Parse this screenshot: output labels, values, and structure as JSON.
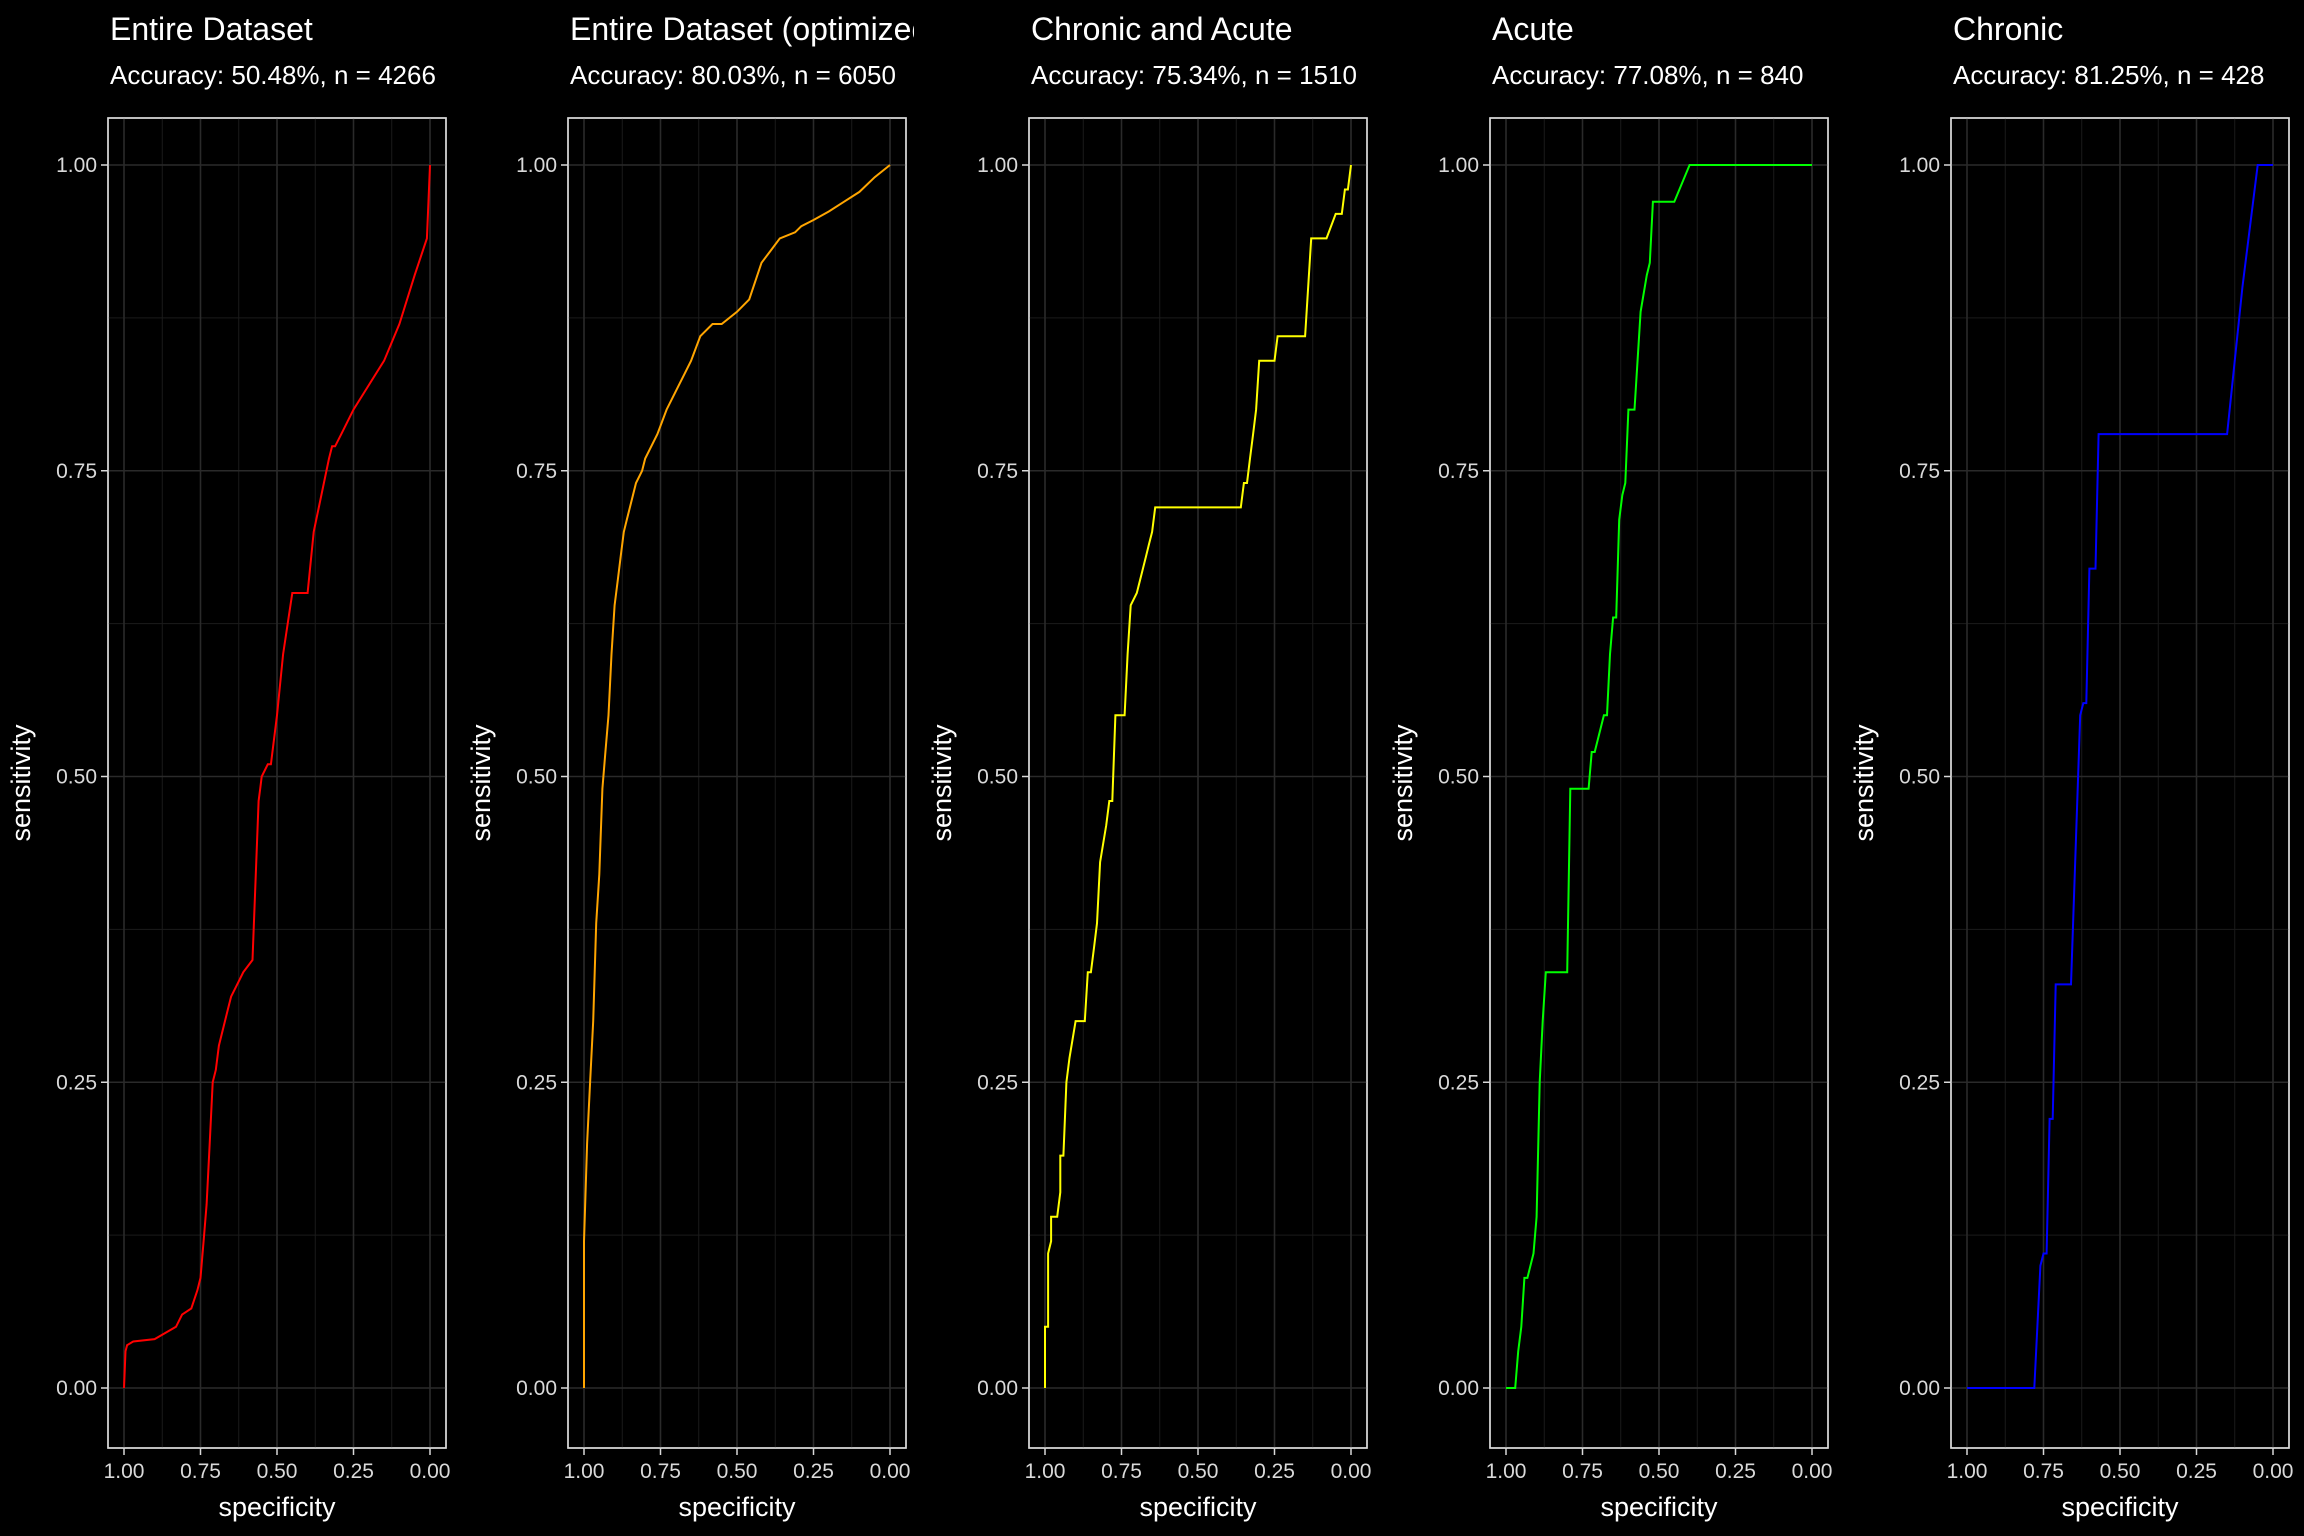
{
  "chart_data": [
    {
      "type": "line",
      "title": "Entire Dataset",
      "subtitle": "Accuracy: 50.48%, n = 4266",
      "xlabel": "specificity",
      "ylabel": "sensitivity",
      "x_reversed": true,
      "xlim": [
        1.0,
        0.0
      ],
      "ylim": [
        0.0,
        1.0
      ],
      "xticks": [
        "1.00",
        "0.75",
        "0.50",
        "0.25",
        "0.00"
      ],
      "yticks": [
        "0.00",
        "0.25",
        "0.50",
        "0.75",
        "1.00"
      ],
      "grid": true,
      "color": "#ff0000",
      "series": [
        {
          "x": [
            1.0,
            0.995,
            0.99,
            0.97,
            0.9,
            0.83,
            0.81,
            0.78,
            0.76,
            0.75,
            0.74,
            0.73,
            0.72,
            0.71,
            0.7,
            0.69,
            0.66,
            0.65,
            0.63,
            0.61,
            0.58,
            0.56,
            0.555,
            0.55,
            0.53,
            0.52,
            0.5,
            0.48,
            0.45,
            0.43,
            0.4,
            0.38,
            0.33,
            0.32,
            0.31,
            0.29,
            0.27,
            0.25,
            0.2,
            0.15,
            0.1,
            0.05,
            0.01,
            0.0
          ],
          "y": [
            0.0,
            0.03,
            0.035,
            0.038,
            0.04,
            0.05,
            0.06,
            0.065,
            0.08,
            0.09,
            0.12,
            0.15,
            0.2,
            0.25,
            0.26,
            0.28,
            0.31,
            0.32,
            0.33,
            0.34,
            0.35,
            0.48,
            0.49,
            0.5,
            0.51,
            0.51,
            0.55,
            0.6,
            0.65,
            0.65,
            0.65,
            0.7,
            0.76,
            0.77,
            0.77,
            0.78,
            0.79,
            0.8,
            0.82,
            0.84,
            0.87,
            0.91,
            0.94,
            1.0
          ]
        }
      ]
    },
    {
      "type": "line",
      "title": "Entire Dataset (optimized)",
      "subtitle": "Accuracy: 80.03%, n = 6050",
      "xlabel": "specificity",
      "ylabel": "sensitivity",
      "x_reversed": true,
      "xlim": [
        1.0,
        0.0
      ],
      "ylim": [
        0.0,
        1.0
      ],
      "xticks": [
        "1.00",
        "0.75",
        "0.50",
        "0.25",
        "0.00"
      ],
      "yticks": [
        "0.00",
        "0.25",
        "0.50",
        "0.75",
        "1.00"
      ],
      "grid": true,
      "color": "#ffa500",
      "series": [
        {
          "x": [
            1.0,
            1.0,
            0.99,
            0.98,
            0.97,
            0.96,
            0.95,
            0.94,
            0.93,
            0.92,
            0.91,
            0.9,
            0.89,
            0.88,
            0.87,
            0.86,
            0.85,
            0.83,
            0.81,
            0.8,
            0.78,
            0.76,
            0.73,
            0.71,
            0.69,
            0.67,
            0.65,
            0.62,
            0.58,
            0.55,
            0.5,
            0.46,
            0.42,
            0.39,
            0.36,
            0.31,
            0.29,
            0.25,
            0.2,
            0.15,
            0.1,
            0.05,
            0.0
          ],
          "y": [
            0.0,
            0.12,
            0.2,
            0.25,
            0.3,
            0.38,
            0.42,
            0.49,
            0.52,
            0.55,
            0.6,
            0.64,
            0.66,
            0.68,
            0.7,
            0.71,
            0.72,
            0.74,
            0.75,
            0.76,
            0.77,
            0.78,
            0.8,
            0.81,
            0.82,
            0.83,
            0.84,
            0.86,
            0.87,
            0.87,
            0.88,
            0.89,
            0.92,
            0.93,
            0.94,
            0.945,
            0.95,
            0.955,
            0.962,
            0.97,
            0.978,
            0.99,
            1.0
          ]
        }
      ]
    },
    {
      "type": "line",
      "title": "Chronic and Acute",
      "subtitle": "Accuracy: 75.34%, n = 1510",
      "xlabel": "specificity",
      "ylabel": "sensitivity",
      "x_reversed": true,
      "xlim": [
        1.0,
        0.0
      ],
      "ylim": [
        0.0,
        1.0
      ],
      "xticks": [
        "1.00",
        "0.75",
        "0.50",
        "0.25",
        "0.00"
      ],
      "yticks": [
        "0.00",
        "0.25",
        "0.50",
        "0.75",
        "1.00"
      ],
      "grid": true,
      "color": "#ffff00",
      "series": [
        {
          "x": [
            1.0,
            1.0,
            0.99,
            0.99,
            0.98,
            0.98,
            0.96,
            0.96,
            0.95,
            0.95,
            0.94,
            0.93,
            0.92,
            0.9,
            0.87,
            0.86,
            0.85,
            0.84,
            0.83,
            0.82,
            0.8,
            0.79,
            0.78,
            0.77,
            0.76,
            0.74,
            0.73,
            0.72,
            0.7,
            0.67,
            0.66,
            0.65,
            0.64,
            0.63,
            0.62,
            0.61,
            0.6,
            0.59,
            0.58,
            0.57,
            0.55,
            0.5,
            0.45,
            0.4,
            0.36,
            0.35,
            0.34,
            0.33,
            0.32,
            0.31,
            0.3,
            0.28,
            0.27,
            0.25,
            0.24,
            0.23,
            0.15,
            0.13,
            0.1,
            0.08,
            0.05,
            0.03,
            0.02,
            0.01,
            0.0
          ],
          "y": [
            0.0,
            0.05,
            0.05,
            0.11,
            0.12,
            0.14,
            0.14,
            0.14,
            0.16,
            0.19,
            0.19,
            0.25,
            0.27,
            0.3,
            0.3,
            0.34,
            0.34,
            0.36,
            0.38,
            0.43,
            0.46,
            0.48,
            0.48,
            0.55,
            0.55,
            0.55,
            0.6,
            0.64,
            0.65,
            0.68,
            0.69,
            0.7,
            0.72,
            0.72,
            0.72,
            0.72,
            0.72,
            0.72,
            0.72,
            0.72,
            0.72,
            0.72,
            0.72,
            0.72,
            0.72,
            0.74,
            0.74,
            0.76,
            0.78,
            0.8,
            0.84,
            0.84,
            0.84,
            0.84,
            0.86,
            0.86,
            0.86,
            0.94,
            0.94,
            0.94,
            0.96,
            0.96,
            0.98,
            0.98,
            1.0
          ]
        }
      ]
    },
    {
      "type": "line",
      "title": "Acute",
      "subtitle": "Accuracy: 77.08%, n = 840",
      "xlabel": "specificity",
      "ylabel": "sensitivity",
      "x_reversed": true,
      "xlim": [
        1.0,
        0.0
      ],
      "ylim": [
        0.0,
        1.0
      ],
      "xticks": [
        "1.00",
        "0.75",
        "0.50",
        "0.25",
        "0.00"
      ],
      "yticks": [
        "0.00",
        "0.25",
        "0.50",
        "0.75",
        "1.00"
      ],
      "grid": true,
      "color": "#00ff00",
      "series": [
        {
          "x": [
            1.0,
            0.97,
            0.96,
            0.95,
            0.94,
            0.93,
            0.91,
            0.9,
            0.89,
            0.88,
            0.87,
            0.85,
            0.8,
            0.79,
            0.78,
            0.73,
            0.72,
            0.71,
            0.68,
            0.67,
            0.66,
            0.65,
            0.64,
            0.63,
            0.62,
            0.61,
            0.6,
            0.58,
            0.56,
            0.54,
            0.53,
            0.52,
            0.51,
            0.5,
            0.49,
            0.47,
            0.45,
            0.4,
            0.38,
            0.37,
            0.3,
            0.25,
            0.2,
            0.15,
            0.1,
            0.05,
            0.0
          ],
          "y": [
            0.0,
            0.0,
            0.03,
            0.05,
            0.09,
            0.09,
            0.11,
            0.14,
            0.25,
            0.3,
            0.34,
            0.34,
            0.34,
            0.49,
            0.49,
            0.49,
            0.52,
            0.52,
            0.55,
            0.55,
            0.6,
            0.63,
            0.63,
            0.71,
            0.73,
            0.74,
            0.8,
            0.8,
            0.88,
            0.91,
            0.92,
            0.97,
            0.97,
            0.97,
            0.97,
            0.97,
            0.97,
            1.0,
            1.0,
            1.0,
            1.0,
            1.0,
            1.0,
            1.0,
            1.0,
            1.0,
            1.0
          ]
        }
      ]
    },
    {
      "type": "line",
      "title": "Chronic",
      "subtitle": "Accuracy: 81.25%, n = 428",
      "xlabel": "specificity",
      "ylabel": "sensitivity",
      "x_reversed": true,
      "xlim": [
        1.0,
        0.0
      ],
      "ylim": [
        0.0,
        1.0
      ],
      "xticks": [
        "1.00",
        "0.75",
        "0.50",
        "0.25",
        "0.00"
      ],
      "yticks": [
        "0.00",
        "0.25",
        "0.50",
        "0.75",
        "1.00"
      ],
      "grid": true,
      "color": "#0000ff",
      "series": [
        {
          "x": [
            1.0,
            0.78,
            0.76,
            0.75,
            0.74,
            0.73,
            0.73,
            0.72,
            0.71,
            0.69,
            0.68,
            0.66,
            0.63,
            0.62,
            0.61,
            0.6,
            0.58,
            0.57,
            0.55,
            0.45,
            0.35,
            0.3,
            0.28,
            0.25,
            0.2,
            0.15,
            0.1,
            0.05,
            0.0
          ],
          "y": [
            0.0,
            0.0,
            0.1,
            0.11,
            0.11,
            0.22,
            0.22,
            0.22,
            0.33,
            0.33,
            0.33,
            0.33,
            0.55,
            0.56,
            0.56,
            0.67,
            0.67,
            0.78,
            0.78,
            0.78,
            0.78,
            0.78,
            0.78,
            0.78,
            0.78,
            0.78,
            0.9,
            1.0,
            1.0
          ]
        }
      ]
    }
  ]
}
